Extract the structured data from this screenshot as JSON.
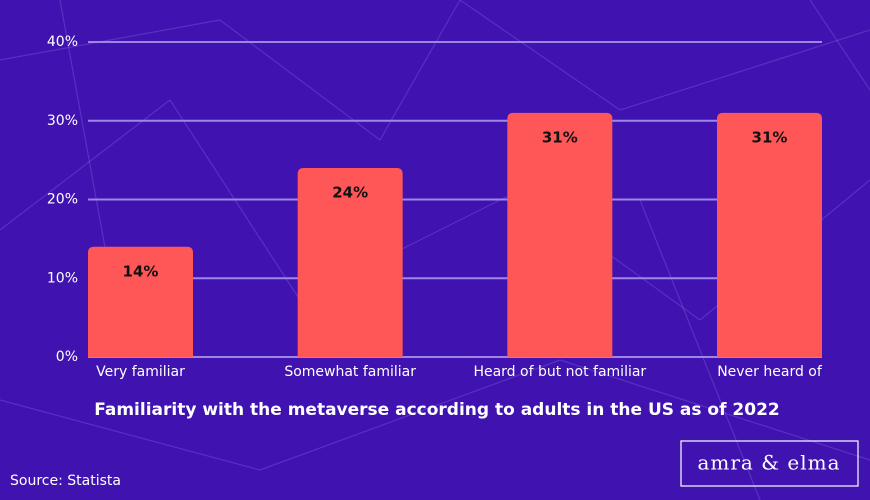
{
  "chart_data": {
    "type": "bar",
    "title": "Familiarity with the metaverse according to adults in the US as of 2022",
    "categories": [
      "Very familiar",
      "Somewhat familiar",
      "Heard of but not familiar",
      "Never heard of"
    ],
    "values": [
      14,
      24,
      31,
      31
    ],
    "value_labels": [
      "14%",
      "24%",
      "31%",
      "31%"
    ],
    "color": "#ff5757",
    "ylim": [
      0,
      40
    ],
    "yticks": [
      {
        "value": 0,
        "label": "0%"
      },
      {
        "value": 10,
        "label": "10%"
      },
      {
        "value": 20,
        "label": "20%"
      },
      {
        "value": 30,
        "label": "30%"
      },
      {
        "value": 40,
        "label": "40%"
      }
    ],
    "grid": true,
    "source": "Source: Statista",
    "brand": "amra & elma"
  }
}
